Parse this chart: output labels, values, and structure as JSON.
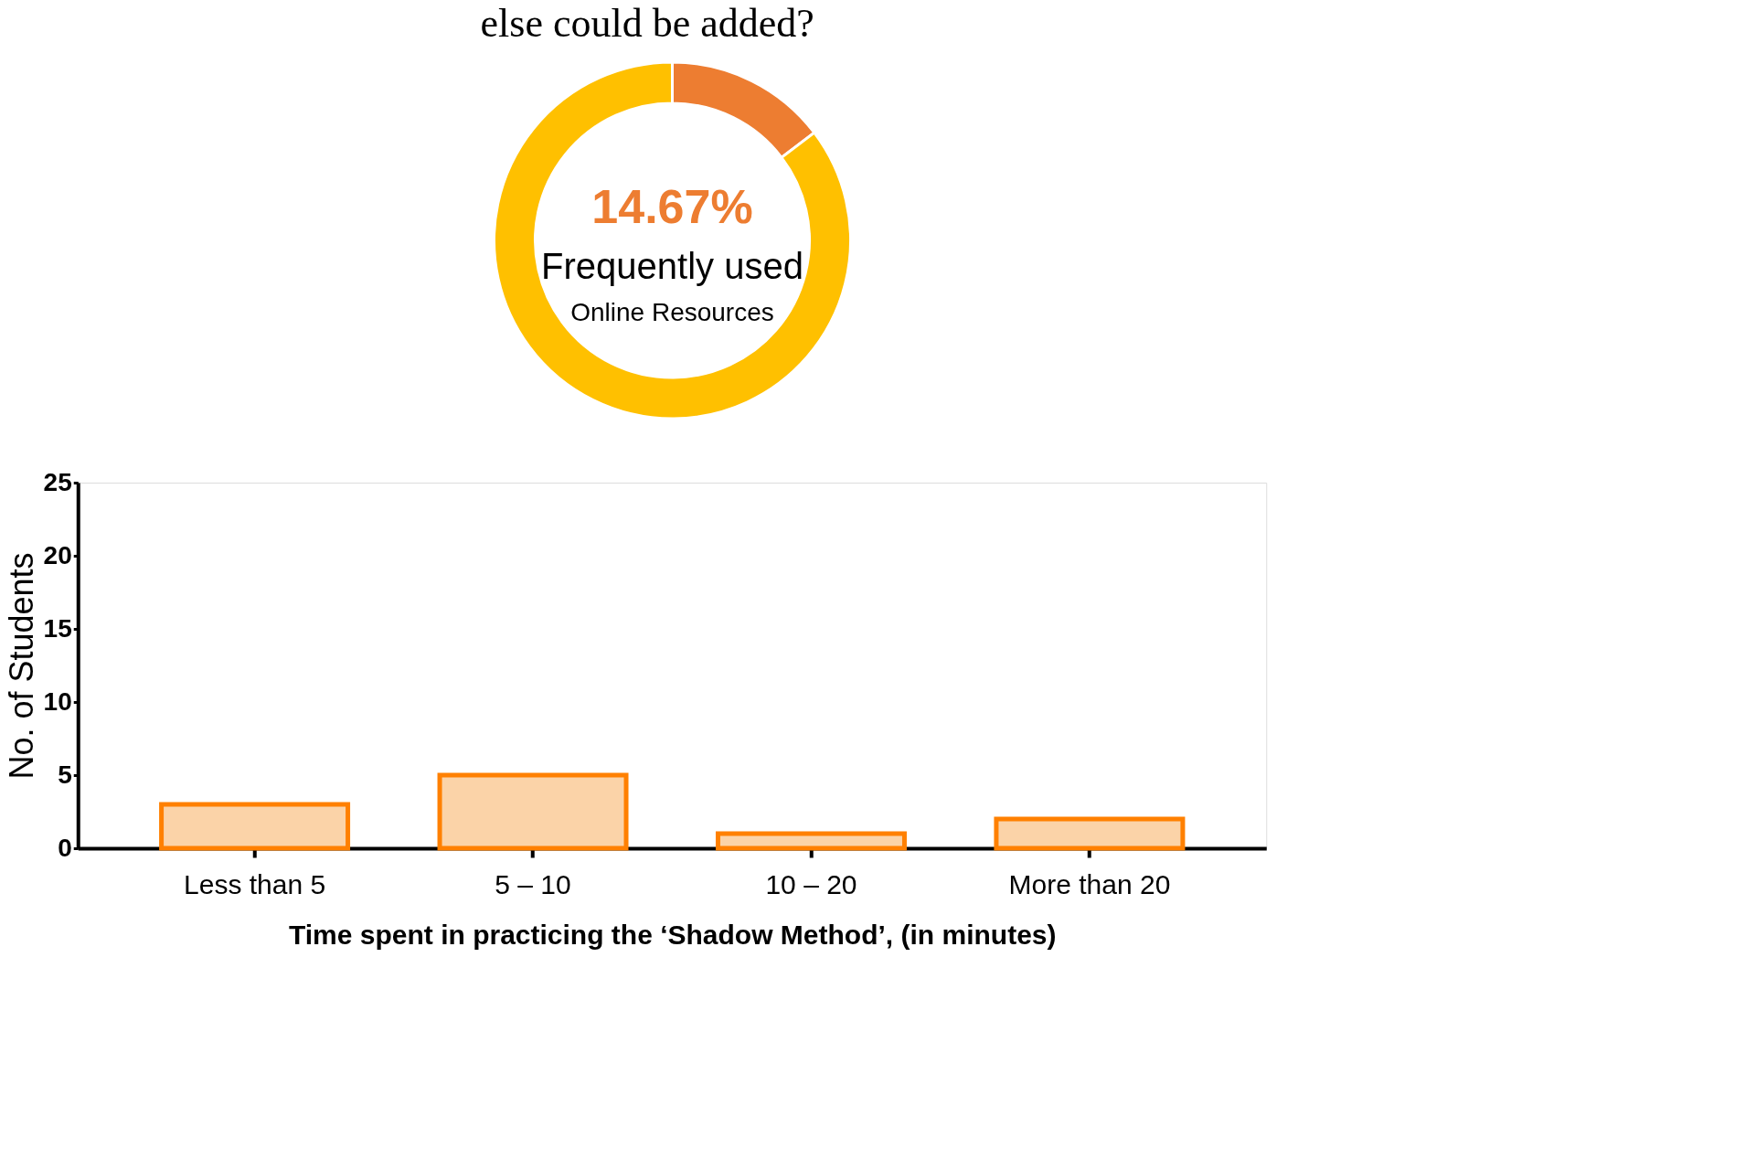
{
  "chart_data": [
    {
      "type": "donut",
      "title": "else could be added?",
      "categories": [
        null,
        null
      ],
      "values": [
        14.67,
        85.33
      ],
      "colors": [
        "#ed7d31",
        "#ffc000"
      ],
      "annotations": [
        "14.67%",
        "Frequently used",
        "Online Resources"
      ]
    },
    {
      "type": "bar",
      "categories": [
        "Less than 5",
        "5 – 10",
        "10 – 20",
        "More than 20"
      ],
      "values": [
        3,
        5,
        1,
        2
      ],
      "color": "#ff8000",
      "ylim": [
        0,
        25
      ],
      "yticks": [
        0,
        5,
        10,
        15,
        20,
        25
      ],
      "ylabel": "No. of Students",
      "xlabel": "Time spent in practicing the ‘Shadow Method’, (in minutes)",
      "grid": false
    }
  ]
}
